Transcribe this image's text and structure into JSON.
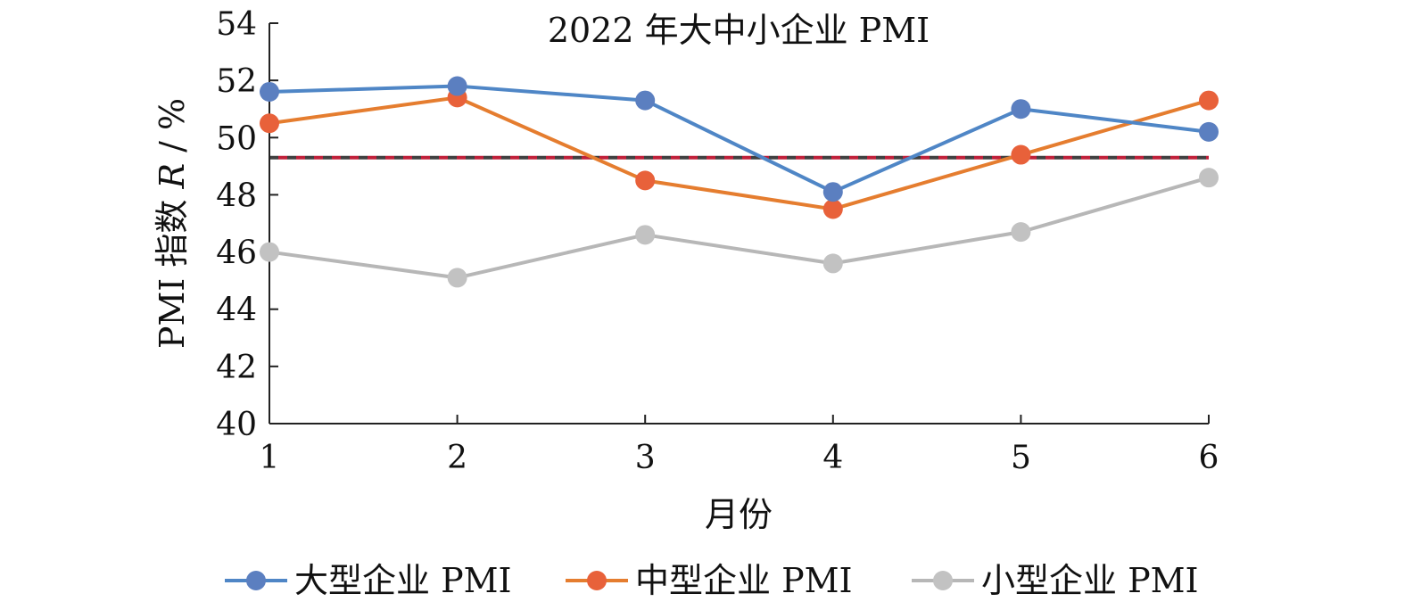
{
  "chart_data": {
    "type": "line",
    "title": "2022 年大中小企业 PMI",
    "xlabel": "月份",
    "ylabel": "PMI 指数 R / %",
    "x": [
      1,
      2,
      3,
      4,
      5,
      6
    ],
    "x_tick_labels": [
      "1",
      "2",
      "3",
      "4",
      "5",
      "6"
    ],
    "ylim": [
      40,
      54
    ],
    "y_ticks": [
      40,
      42,
      44,
      46,
      48,
      50,
      52,
      54
    ],
    "y_tick_labels": [
      "40",
      "42",
      "44",
      "46",
      "48",
      "50",
      "52",
      "54"
    ],
    "grid": false,
    "legend_position": "bottom",
    "series": [
      {
        "name": "大型企业 PMI",
        "color": "#4f86c6",
        "marker_color": "#5b7fc0",
        "values": [
          51.6,
          51.8,
          51.3,
          48.1,
          51.0,
          50.2
        ]
      },
      {
        "name": "中型企业 PMI",
        "color": "#e57d2f",
        "marker_color": "#e8613a",
        "values": [
          50.5,
          51.4,
          48.5,
          47.5,
          49.4,
          51.3
        ]
      },
      {
        "name": "小型企业 PMI",
        "color": "#b7b7b7",
        "marker_color": "#c2c2c2",
        "values": [
          46.0,
          45.1,
          46.6,
          45.6,
          46.7,
          48.6
        ]
      }
    ],
    "reference_line": {
      "y": 49.3,
      "colors": [
        "#404040",
        "#c0203a"
      ],
      "style": "dashed"
    }
  }
}
